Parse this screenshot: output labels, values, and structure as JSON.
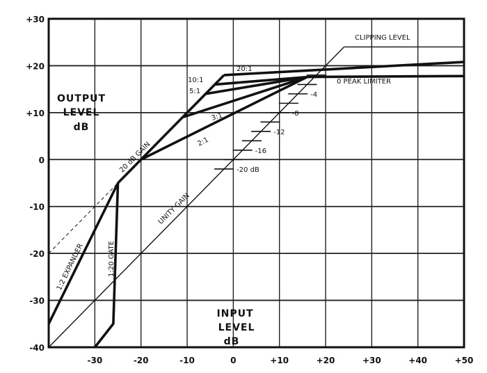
{
  "chart_data": {
    "type": "line",
    "title": "",
    "xlabel": [
      "INPUT",
      "LEVEL",
      "dB"
    ],
    "ylabel": [
      "OUTPUT",
      "LEVEL",
      "dB"
    ],
    "xlim": [
      -40,
      50
    ],
    "ylim": [
      -40,
      30
    ],
    "grid": true,
    "x_ticks": [
      "-30",
      "-20",
      "-10",
      "0",
      "+10",
      "+20",
      "+30",
      "+40",
      "+50"
    ],
    "x_tick_values": [
      -30,
      -20,
      -10,
      0,
      10,
      20,
      30,
      40,
      50
    ],
    "y_ticks": [
      "+30",
      "+20",
      "+10",
      "0",
      "-10",
      "-20",
      "-30",
      "-40"
    ],
    "y_tick_values": [
      30,
      20,
      10,
      0,
      -10,
      -20,
      -30,
      -40
    ],
    "series": [
      {
        "name": "UNITY GAIN",
        "style": "thin",
        "points": [
          [
            -40,
            -40
          ],
          [
            24,
            24
          ]
        ]
      },
      {
        "name": "CLIPPING LEVEL",
        "style": "thin",
        "points": [
          [
            24,
            24
          ],
          [
            50,
            24
          ]
        ]
      },
      {
        "name": "20 dB GAIN",
        "style": "thick",
        "points": [
          [
            -25,
            -5
          ],
          [
            -2,
            18
          ]
        ]
      },
      {
        "name": "20:1",
        "style": "thick",
        "points": [
          [
            -2,
            18
          ],
          [
            50,
            20.8
          ]
        ]
      },
      {
        "name": "10:1",
        "style": "thick",
        "points": [
          [
            -4,
            16
          ],
          [
            16,
            17.6
          ]
        ]
      },
      {
        "name": "5:1",
        "style": "thick",
        "points": [
          [
            -6,
            14
          ],
          [
            16,
            17.6
          ]
        ]
      },
      {
        "name": "3:1",
        "style": "thick",
        "points": [
          [
            -11,
            9
          ],
          [
            16,
            17.6
          ]
        ]
      },
      {
        "name": "2:1",
        "style": "thick",
        "points": [
          [
            -20,
            0
          ],
          [
            16,
            17.6
          ]
        ]
      },
      {
        "name": "0 PEAK LIMITER",
        "style": "thick",
        "points": [
          [
            16,
            17.6
          ],
          [
            50,
            17.8
          ]
        ]
      },
      {
        "name": "1:2 EXPANDER",
        "style": "thick",
        "points": [
          [
            -40,
            -35
          ],
          [
            -25,
            -5
          ]
        ]
      },
      {
        "name": "1:20 GATE",
        "style": "thick",
        "points": [
          [
            -25,
            -5
          ],
          [
            -26,
            -35
          ],
          [
            -30,
            -40
          ]
        ]
      },
      {
        "name": "",
        "style": "dashed",
        "points": [
          [
            -40,
            -20
          ],
          [
            -25,
            -5
          ]
        ]
      }
    ],
    "threshold_ticks": {
      "tick_levels": [
        18,
        16,
        14,
        12,
        10,
        8,
        6,
        4,
        2,
        0,
        -2
      ],
      "labels": [
        {
          "level": 14,
          "text": "-4"
        },
        {
          "level": 10,
          "text": "-8"
        },
        {
          "level": 6,
          "text": "-12"
        },
        {
          "level": 2,
          "text": "-16"
        },
        {
          "level": -2,
          "text": "-20 dB"
        }
      ]
    },
    "annotations": {
      "clipping": "CLIPPING LEVEL",
      "r20": "20:1",
      "r10": "10:1",
      "r5": "5:1",
      "r3": "3:1",
      "r2": "2:1",
      "limiter": "0 PEAK LIMITER",
      "gain": "20 dB GAIN",
      "unity": "UNITY GAIN",
      "expander": "1:2 EXPANDER",
      "gate": "1:20 GATE"
    },
    "colors": {
      "ink": "#111111",
      "background": "#ffffff"
    }
  }
}
